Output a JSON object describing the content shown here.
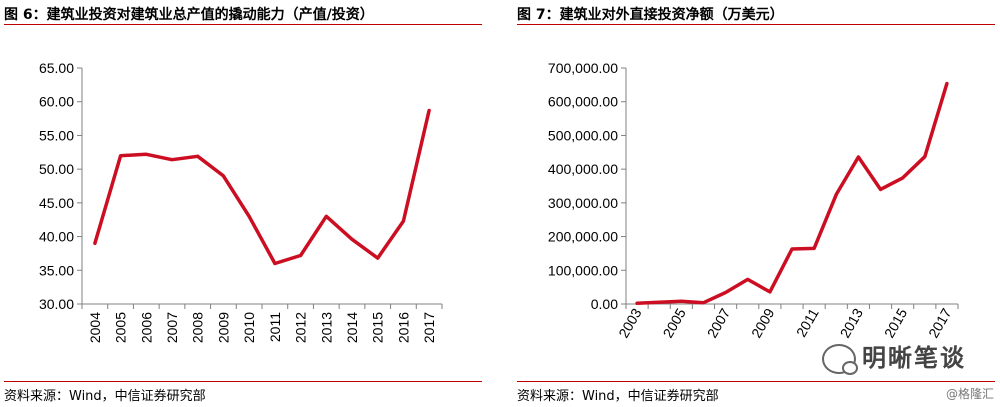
{
  "figures": {
    "left_title": "图 6：建筑业投资对建筑业总产值的撬动能力（产值/投资）",
    "right_title": "图 7：建筑业对外直接投资净额（万美元）",
    "left_source": "资料来源：Wind，中信证券研究部",
    "right_source": "资料来源：Wind，中信证券研究部",
    "watermark": "明晰笔谈",
    "corner_tag": "@格隆汇",
    "return_mark": "↵"
  },
  "colors": {
    "line": "#cc0e23",
    "rule": "#c00000",
    "axis": "#808080"
  },
  "chart_data": [
    {
      "type": "line",
      "title": "图 6：建筑业投资对建筑业总产值的撬动能力（产值/投资）",
      "xlabel": "",
      "ylabel": "",
      "categories": [
        "2004",
        "2005",
        "2006",
        "2007",
        "2008",
        "2009",
        "2010",
        "2011",
        "2012",
        "2013",
        "2014",
        "2015",
        "2016",
        "2017"
      ],
      "values": [
        39.0,
        52.0,
        52.2,
        51.4,
        51.9,
        49.0,
        43.0,
        36.0,
        37.2,
        43.0,
        39.6,
        36.8,
        42.3,
        58.7
      ],
      "ylim": [
        30,
        65
      ],
      "yticks": [
        "30.00",
        "35.00",
        "40.00",
        "45.00",
        "50.00",
        "55.00",
        "60.00",
        "65.00"
      ],
      "grid": false,
      "legend": "none"
    },
    {
      "type": "line",
      "title": "图 7：建筑业对外直接投资净额（万美元）",
      "xlabel": "",
      "ylabel": "",
      "categories": [
        "2003",
        "2004",
        "2005",
        "2006",
        "2007",
        "2008",
        "2009",
        "2010",
        "2011",
        "2012",
        "2013",
        "2014",
        "2015",
        "2016",
        "2017"
      ],
      "xtick_labels": [
        "2003",
        "",
        "2005",
        "",
        "2007",
        "",
        "2009",
        "",
        "2011",
        "",
        "2013",
        "",
        "2015",
        "",
        "2017"
      ],
      "values": [
        2000,
        5000,
        8000,
        4000,
        34000,
        73000,
        36000,
        163000,
        165000,
        325000,
        436000,
        340000,
        374000,
        437000,
        654000
      ],
      "ylim": [
        0,
        700000
      ],
      "yticks": [
        "0.00",
        "100,000.00",
        "200,000.00",
        "300,000.00",
        "400,000.00",
        "500,000.00",
        "600,000.00",
        "700,000.00"
      ],
      "grid": false,
      "legend": "none"
    }
  ]
}
